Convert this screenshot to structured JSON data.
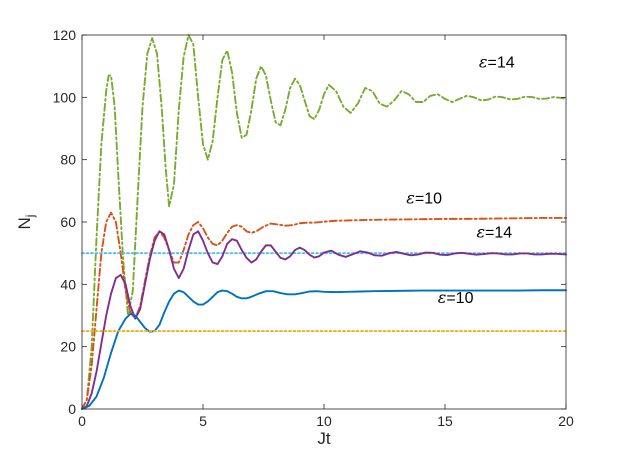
{
  "chart_data": {
    "type": "line",
    "title": "",
    "xlabel": "Jt",
    "ylabel": "N",
    "ylabel_sub": "j",
    "xlim": [
      0,
      20
    ],
    "ylim": [
      0,
      120
    ],
    "xticks": [
      0,
      5,
      10,
      15,
      20
    ],
    "yticks": [
      0,
      20,
      40,
      60,
      80,
      100,
      120
    ],
    "grid": false,
    "series": [
      {
        "color": "#77ac30",
        "style": "dashdot",
        "x": [
          0,
          0.2,
          0.4,
          0.6,
          0.8,
          1.0,
          1.1,
          1.2,
          1.35,
          1.5,
          1.7,
          1.9,
          2.1,
          2.3,
          2.5,
          2.7,
          2.9,
          3.1,
          3.3,
          3.45,
          3.6,
          3.8,
          4.0,
          4.2,
          4.4,
          4.6,
          4.8,
          5.0,
          5.2,
          5.4,
          5.6,
          5.8,
          6.0,
          6.2,
          6.4,
          6.6,
          6.8,
          7.0,
          7.2,
          7.4,
          7.6,
          7.8,
          8.0,
          8.2,
          8.4,
          8.6,
          8.8,
          9.0,
          9.2,
          9.4,
          9.6,
          9.8,
          10.0,
          10.2,
          10.5,
          10.8,
          11.1,
          11.4,
          11.7,
          12.0,
          12.3,
          12.6,
          12.9,
          13.2,
          13.5,
          13.8,
          14.1,
          14.4,
          14.7,
          15.0,
          15.3,
          15.6,
          15.9,
          16.2,
          16.5,
          16.8,
          17.1,
          17.4,
          17.7,
          18.0,
          18.3,
          18.6,
          18.9,
          19.2,
          19.5,
          19.8,
          20.0
        ],
        "y": [
          0,
          3,
          20,
          55,
          85,
          102,
          107,
          107,
          97,
          75,
          48,
          30,
          38,
          68,
          97,
          114,
          119,
          114,
          96,
          78,
          65,
          72,
          96,
          113,
          120,
          117,
          100,
          85,
          80,
          86,
          100,
          112,
          115,
          108,
          95,
          87,
          88,
          96,
          106,
          110,
          107,
          99,
          92,
          91,
          96,
          103,
          106,
          104,
          99,
          94,
          93,
          96,
          101,
          104,
          102,
          97,
          95,
          98,
          103,
          102,
          98,
          97,
          99,
          102,
          101,
          98.5,
          98.5,
          100.5,
          101,
          99.5,
          98.5,
          99.5,
          100.5,
          100,
          99,
          99.3,
          100.3,
          100,
          99.3,
          99.5,
          100.2,
          100.1,
          99.5,
          99.6,
          100.1,
          99.8,
          99.5
        ]
      },
      {
        "color": "#d95319",
        "style": "dashdot",
        "x": [
          0,
          0.2,
          0.4,
          0.6,
          0.8,
          1.0,
          1.2,
          1.4,
          1.6,
          1.8,
          2.0,
          2.2,
          2.4,
          2.6,
          2.8,
          3.0,
          3.2,
          3.4,
          3.6,
          3.8,
          4.0,
          4.2,
          4.4,
          4.6,
          4.8,
          5.0,
          5.2,
          5.4,
          5.6,
          5.8,
          6.0,
          6.2,
          6.4,
          6.6,
          6.8,
          7.0,
          7.2,
          7.5,
          7.8,
          8.1,
          8.4,
          8.7,
          9.0,
          9.3,
          9.6,
          10.0,
          10.5,
          11.0,
          11.5,
          12.0,
          13.0,
          14.0,
          15.0,
          16.0,
          17.0,
          18.0,
          19.0,
          20.0
        ],
        "y": [
          0,
          3,
          14,
          32,
          50,
          60,
          63,
          60,
          50,
          38,
          31,
          29,
          33,
          41,
          49,
          55,
          57,
          55,
          51,
          47,
          47,
          51,
          56,
          59,
          60,
          58,
          55,
          53,
          52.5,
          54,
          56.5,
          58.5,
          59,
          58.5,
          57,
          56.5,
          57,
          58.5,
          59.5,
          59.2,
          58.8,
          59,
          59.6,
          59.8,
          59.8,
          60.1,
          60.4,
          60.5,
          60.6,
          60.7,
          60.8,
          60.9,
          61,
          61,
          61.1,
          61.2,
          61.3,
          61.3
        ]
      },
      {
        "color": "#4dbeee",
        "style": "dotted",
        "x": [
          0,
          20
        ],
        "y": [
          50,
          50
        ]
      },
      {
        "color": "#7e2f8e",
        "style": "solid",
        "x": [
          0,
          0.2,
          0.4,
          0.6,
          0.8,
          1.0,
          1.2,
          1.4,
          1.6,
          1.8,
          2.0,
          2.2,
          2.4,
          2.6,
          2.8,
          3.0,
          3.2,
          3.4,
          3.6,
          3.8,
          4.0,
          4.2,
          4.4,
          4.6,
          4.8,
          5.0,
          5.2,
          5.4,
          5.6,
          5.8,
          6.0,
          6.2,
          6.4,
          6.6,
          6.8,
          7.0,
          7.2,
          7.4,
          7.6,
          7.8,
          8.0,
          8.2,
          8.4,
          8.6,
          8.8,
          9.0,
          9.2,
          9.4,
          9.6,
          9.8,
          10.0,
          10.3,
          10.6,
          10.9,
          11.2,
          11.5,
          11.8,
          12.1,
          12.4,
          12.7,
          13.0,
          13.3,
          13.6,
          13.9,
          14.2,
          14.5,
          14.8,
          15.1,
          15.4,
          15.7,
          16.0,
          16.3,
          16.6,
          16.9,
          17.2,
          17.5,
          17.8,
          18.1,
          18.4,
          18.7,
          19.0,
          19.3,
          19.6,
          20.0
        ],
        "y": [
          0,
          1,
          5,
          12,
          21,
          30,
          37,
          42,
          43,
          40,
          33,
          29,
          32,
          40,
          48,
          54,
          57,
          56,
          51,
          45,
          42,
          45,
          51,
          56,
          57,
          54,
          50,
          47,
          46.5,
          49,
          53,
          54.5,
          54,
          51,
          48.5,
          47,
          48,
          50.5,
          52.5,
          52.5,
          50.5,
          48.5,
          48,
          49,
          51,
          51.8,
          51,
          49.5,
          48.6,
          49,
          50.2,
          50.8,
          49.5,
          48.8,
          49.7,
          50.6,
          50.2,
          49.3,
          49.2,
          50,
          50.4,
          49.8,
          49.3,
          49.6,
          50.2,
          50.1,
          49.5,
          49.4,
          49.9,
          50.1,
          49.8,
          49.5,
          49.7,
          50,
          49.9,
          49.6,
          49.6,
          49.9,
          49.9,
          49.6,
          49.6,
          49.8,
          49.8,
          49.6
        ]
      },
      {
        "color": "#0072bd",
        "style": "solid",
        "x": [
          0,
          0.3,
          0.6,
          0.9,
          1.2,
          1.5,
          1.8,
          2.0,
          2.2,
          2.4,
          2.6,
          2.8,
          3.0,
          3.2,
          3.4,
          3.6,
          3.8,
          4.0,
          4.2,
          4.4,
          4.6,
          4.8,
          5.0,
          5.2,
          5.4,
          5.6,
          5.8,
          6.0,
          6.2,
          6.4,
          6.6,
          6.8,
          7.0,
          7.3,
          7.6,
          7.9,
          8.2,
          8.5,
          8.8,
          9.1,
          9.4,
          9.7,
          10.0,
          10.5,
          11.0,
          11.5,
          12.0,
          13.0,
          14.0,
          15.0,
          16.0,
          17.0,
          18.0,
          19.0,
          20.0
        ],
        "y": [
          0,
          1,
          4,
          10,
          18,
          25,
          29,
          30.5,
          30,
          28,
          26,
          24.8,
          25,
          27,
          31,
          34.5,
          37,
          38,
          37.5,
          36,
          34.5,
          33.5,
          33.5,
          34.5,
          36,
          37.5,
          38,
          37.8,
          37,
          36,
          35.5,
          35.5,
          36,
          37,
          37.8,
          37.8,
          37.2,
          36.8,
          36.8,
          37.2,
          37.7,
          37.8,
          37.6,
          37.5,
          37.6,
          37.7,
          37.8,
          37.9,
          38,
          38,
          38,
          38,
          38,
          38.1,
          38.1
        ]
      },
      {
        "color": "#edb120",
        "style": "dotted",
        "x": [
          0,
          20
        ],
        "y": [
          25,
          25
        ]
      }
    ],
    "annotations": [
      {
        "sym": "ε",
        "text": "=14",
        "x": 16.4,
        "y": 109.5
      },
      {
        "sym": "ε",
        "text": "=10",
        "x": 13.4,
        "y": 66
      },
      {
        "sym": "ε",
        "text": "=14",
        "x": 16.3,
        "y": 55
      },
      {
        "sym": "ε",
        "text": "=10",
        "x": 14.7,
        "y": 34
      }
    ]
  }
}
